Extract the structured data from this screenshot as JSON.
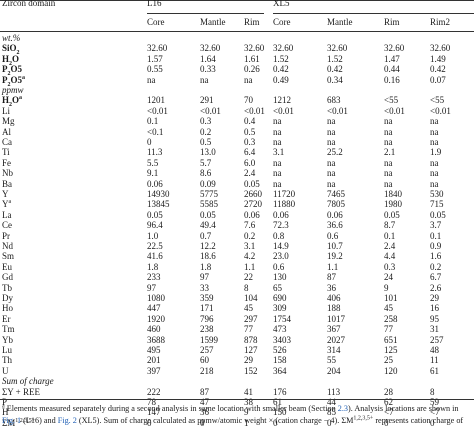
{
  "header": {
    "domain_label": "Zircon domain",
    "groups": [
      "L16",
      "XL5"
    ],
    "columns": [
      "Core",
      "Mantle",
      "Rim",
      "Core",
      "Mantle",
      "Rim",
      "Rim2"
    ]
  },
  "sections": [
    {
      "title": "wt.%",
      "rows": [
        {
          "label": "SiO",
          "sub": "2",
          "sup": "",
          "bold": true,
          "values": [
            "32.60",
            "32.60",
            "32.60",
            "32.60",
            "32.60",
            "32.60",
            "32.60"
          ]
        },
        {
          "label": "H",
          "sub": "2",
          "sup": "",
          "tail": "O",
          "bold": true,
          "values": [
            "1.57",
            "1.64",
            "1.61",
            "1.52",
            "1.52",
            "1.47",
            "1.49"
          ]
        },
        {
          "label": "P",
          "sub": "2",
          "sup": "",
          "tail": "O5",
          "bold": true,
          "values": [
            "0.55",
            "0.33",
            "0.26",
            "0.42",
            "0.42",
            "0.44",
            "0.42"
          ]
        },
        {
          "label": "P",
          "sub": "2",
          "sup": "a",
          "tail": "O5",
          "bold": true,
          "values": [
            "na",
            "na",
            "na",
            "0.49",
            "0.34",
            "0.16",
            "0.07"
          ]
        }
      ]
    },
    {
      "title": "ppmw",
      "rows": [
        {
          "label": "H",
          "sub": "2",
          "tail": "O",
          "sup": "a",
          "bold": true,
          "values": [
            "1201",
            "291",
            "70",
            "1212",
            "683",
            "<55",
            "<55"
          ]
        },
        {
          "label": "Li",
          "values": [
            "<0.01",
            "<0.01",
            "<0.01",
            "<0.01",
            "<0.01",
            "<0.01",
            "<0.01"
          ]
        },
        {
          "label": "Mg",
          "values": [
            "0.1",
            "0.3",
            "0.4",
            "na",
            "na",
            "na",
            "na"
          ]
        },
        {
          "label": "Al",
          "values": [
            "<0.1",
            "0.2",
            "0.5",
            "na",
            "na",
            "na",
            "na"
          ]
        },
        {
          "label": "Ca",
          "values": [
            "0",
            "0.5",
            "0.3",
            "na",
            "na",
            "na",
            "na"
          ]
        },
        {
          "label": "Ti",
          "values": [
            "11.3",
            "13.0",
            "6.4",
            "3.1",
            "25.2",
            "2.1",
            "1.9"
          ]
        },
        {
          "label": "Fe",
          "values": [
            "5.5",
            "5.7",
            "6.0",
            "na",
            "na",
            "na",
            "na"
          ]
        },
        {
          "label": "Nb",
          "values": [
            "9.1",
            "8.6",
            "2.4",
            "na",
            "na",
            "na",
            "na"
          ]
        },
        {
          "label": "Ba",
          "values": [
            "0.06",
            "0.09",
            "0.05",
            "na",
            "na",
            "na",
            "na"
          ]
        },
        {
          "label": "Y",
          "values": [
            "14930",
            "5775",
            "2660",
            "11720",
            "7465",
            "1840",
            "530"
          ]
        },
        {
          "label": "Y",
          "sup": "a",
          "values": [
            "13845",
            "5585",
            "2720",
            "11880",
            "7805",
            "1980",
            "715"
          ]
        },
        {
          "label": "La",
          "values": [
            "0.05",
            "0.05",
            "0.06",
            "0.06",
            "0.06",
            "0.05",
            "0.05"
          ]
        },
        {
          "label": "Ce",
          "values": [
            "96.4",
            "49.4",
            "7.6",
            "72.3",
            "36.6",
            "8.7",
            "3.7"
          ]
        },
        {
          "label": "Pr",
          "values": [
            "1.0",
            "0.7",
            "0.2",
            "0.8",
            "0.6",
            "0.1",
            "0.1"
          ]
        },
        {
          "label": "Nd",
          "values": [
            "22.5",
            "12.2",
            "3.1",
            "14.9",
            "10.7",
            "2.4",
            "0.9"
          ]
        },
        {
          "label": "Sm",
          "values": [
            "41.6",
            "18.6",
            "4.2",
            "23.0",
            "19.2",
            "4.4",
            "1.6"
          ]
        },
        {
          "label": "Eu",
          "values": [
            "1.8",
            "1.8",
            "1.1",
            "0.6",
            "1.1",
            "0.3",
            "0.2"
          ]
        },
        {
          "label": "Gd",
          "values": [
            "233",
            "97",
            "22",
            "130",
            "87",
            "24",
            "6.7"
          ]
        },
        {
          "label": "Tb",
          "values": [
            "97",
            "33",
            "8",
            "65",
            "36",
            "9",
            "2.6"
          ]
        },
        {
          "label": "Dy",
          "values": [
            "1080",
            "359",
            "104",
            "690",
            "406",
            "101",
            "29"
          ]
        },
        {
          "label": "Ho",
          "values": [
            "447",
            "171",
            "45",
            "309",
            "188",
            "45",
            "16"
          ]
        },
        {
          "label": "Er",
          "values": [
            "1920",
            "796",
            "297",
            "1754",
            "1017",
            "258",
            "95"
          ]
        },
        {
          "label": "Tm",
          "values": [
            "460",
            "238",
            "77",
            "473",
            "367",
            "77",
            "31"
          ]
        },
        {
          "label": "Yb",
          "values": [
            "3688",
            "1599",
            "878",
            "3403",
            "2027",
            "651",
            "257"
          ]
        },
        {
          "label": "Lu",
          "values": [
            "495",
            "257",
            "127",
            "526",
            "314",
            "125",
            "48"
          ]
        },
        {
          "label": "Th",
          "values": [
            "201",
            "60",
            "29",
            "158",
            "55",
            "25",
            "11"
          ]
        },
        {
          "label": "U",
          "values": [
            "397",
            "218",
            "152",
            "364",
            "204",
            "120",
            "61"
          ]
        }
      ]
    },
    {
      "title": "Sum of charge",
      "rows": [
        {
          "label": "ΣY + REE",
          "values": [
            "222",
            "87",
            "41",
            "176",
            "113",
            "28",
            "8"
          ]
        },
        {
          "label": "P",
          "values": [
            "78",
            "47",
            "38",
            "61",
            "44",
            "62",
            "59"
          ]
        },
        {
          "label": "H",
          "values": [
            "147",
            "36",
            "9",
            "150",
            "85",
            "<7",
            "<7"
          ]
        },
        {
          "label": "ΣM",
          "sup": "1,2,3,5+",
          "values": [
            "0",
            "0",
            "1",
            "0",
            "0",
            "0",
            "0"
          ]
        }
      ]
    }
  ],
  "footnotes": {
    "line1_marker": "a",
    "line1_text": "Elements measured separately during a second analysis in same location with smaller beam (Section ",
    "line1_ref": "2.3",
    "line1_after": "). Analysis locations are shown in",
    "line2_fig1": "Fig. 1",
    "line2_mid1": " (L16) and ",
    "line2_fig2": "Fig. 2",
    "line2_mid2": " (XL5). Sum of charge calculated as ppmw/atomic weight × (cation charge − 4). ΣM",
    "line2_sup": "1,2,3,5+",
    "line2_end": " represents cation charge of"
  }
}
